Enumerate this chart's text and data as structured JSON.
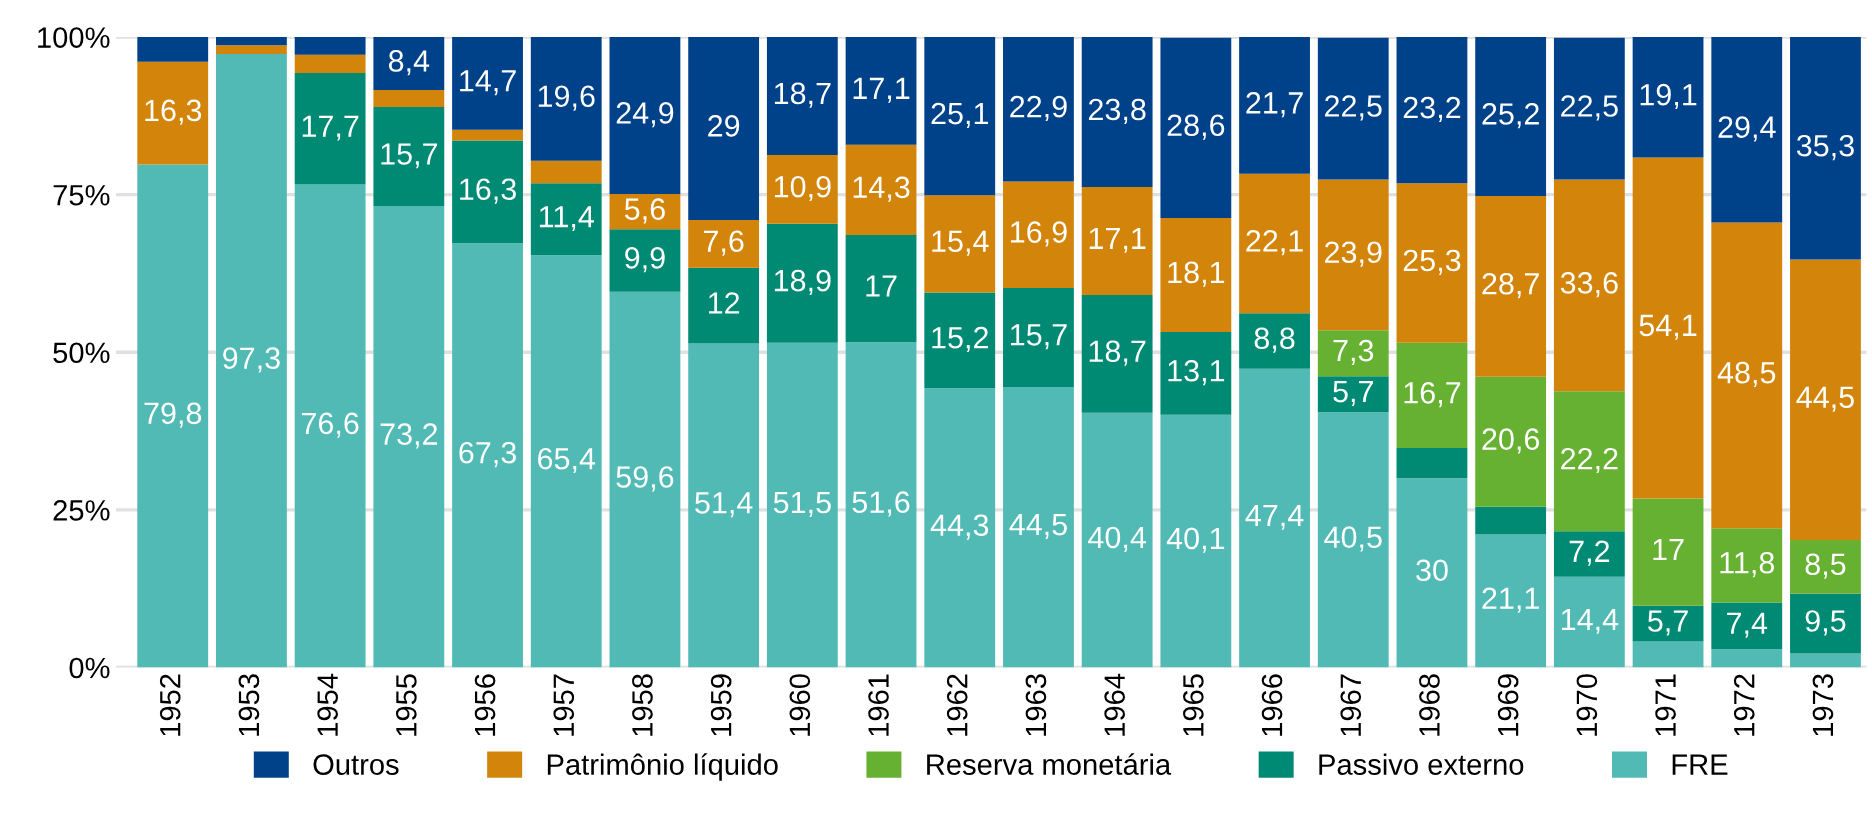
{
  "chart_data": {
    "type": "bar",
    "stacked": true,
    "categories": [
      "1952",
      "1953",
      "1954",
      "1955",
      "1956",
      "1957",
      "1958",
      "1959",
      "1960",
      "1961",
      "1962",
      "1963",
      "1964",
      "1965",
      "1966",
      "1967",
      "1968",
      "1969",
      "1970",
      "1971",
      "1972",
      "1973"
    ],
    "ylim": [
      0,
      100
    ],
    "yticks": [
      {
        "value": 0,
        "label": "0%"
      },
      {
        "value": 25,
        "label": "25%"
      },
      {
        "value": 50,
        "label": "50%"
      },
      {
        "value": 75,
        "label": "75%"
      },
      {
        "value": 100,
        "label": "100%"
      }
    ],
    "grid": "y",
    "legend": "bottom",
    "series": [
      {
        "name": "FRE",
        "color": "#52bab4",
        "values": [
          79.8,
          97.3,
          76.6,
          73.2,
          67.3,
          65.4,
          59.6,
          51.4,
          51.5,
          51.6,
          44.3,
          44.5,
          40.4,
          40.1,
          47.4,
          40.5,
          30,
          21.1,
          14.4,
          4.1,
          2.9,
          2.2
        ],
        "value_labels": [
          "79,8",
          "97,3",
          "76,6",
          "73,2",
          "67,3",
          "65,4",
          "59,6",
          "51,4",
          "51,5",
          "51,6",
          "44,3",
          "44,5",
          "40,4",
          "40,1",
          "47,4",
          "40,5",
          "30",
          "21,1",
          "14,4",
          null,
          null,
          null
        ]
      },
      {
        "name": "Passivo externo",
        "color": "#008a74",
        "values": [
          0,
          0,
          17.7,
          15.7,
          16.3,
          11.4,
          9.9,
          12,
          18.9,
          17,
          15.2,
          15.7,
          18.7,
          13.1,
          8.8,
          5.7,
          4.8,
          4.4,
          7.2,
          5.7,
          7.4,
          9.5
        ],
        "value_labels": [
          null,
          null,
          "17,7",
          "15,7",
          "16,3",
          "11,4",
          "9,9",
          "12",
          "18,9",
          "17",
          "15,2",
          "15,7",
          "18,7",
          "13,1",
          "8,8",
          "5,7",
          null,
          null,
          "7,2",
          "5,7",
          "7,4",
          "9,5"
        ]
      },
      {
        "name": "Reserva monetária",
        "color": "#66b132",
        "values": [
          0,
          0,
          0,
          0,
          0,
          0,
          0,
          0,
          0,
          0,
          0,
          0,
          0,
          0,
          0,
          7.3,
          16.7,
          20.6,
          22.2,
          17,
          11.8,
          8.5
        ],
        "value_labels": [
          null,
          null,
          null,
          null,
          null,
          null,
          null,
          null,
          null,
          null,
          null,
          null,
          null,
          null,
          null,
          "7,3",
          "16,7",
          "20,6",
          "22,2",
          "17",
          "11,8",
          "8,5"
        ]
      },
      {
        "name": "Patrimônio líquido",
        "color": "#d3850b",
        "values": [
          16.3,
          1.4,
          2.9,
          2.7,
          1.7,
          3.6,
          5.6,
          7.6,
          10.9,
          14.3,
          15.4,
          16.9,
          17.1,
          18.1,
          22.1,
          23.9,
          25.3,
          28.7,
          33.6,
          54.1,
          48.5,
          44.5
        ],
        "value_labels": [
          "16,3",
          null,
          null,
          null,
          null,
          null,
          "5,6",
          "7,6",
          "10,9",
          "14,3",
          "15,4",
          "16,9",
          "17,1",
          "18,1",
          "22,1",
          "23,9",
          "25,3",
          "28,7",
          "33,6",
          "54,1",
          "48,5",
          "44,5"
        ]
      },
      {
        "name": "Outros",
        "color": "#00428a",
        "values": [
          3.9,
          1.3,
          2.8,
          8.4,
          14.7,
          19.6,
          24.9,
          29,
          18.7,
          17.1,
          25.1,
          22.9,
          23.8,
          28.6,
          21.7,
          22.5,
          23.2,
          25.2,
          22.5,
          19.1,
          29.4,
          35.3
        ],
        "value_labels": [
          null,
          null,
          null,
          "8,4",
          "14,7",
          "19,6",
          "24,9",
          "29",
          "18,7",
          "17,1",
          "25,1",
          "22,9",
          "23,8",
          "28,6",
          "21,7",
          "22,5",
          "23,2",
          "25,2",
          "22,5",
          "19,1",
          "29,4",
          "35,3"
        ]
      }
    ]
  }
}
